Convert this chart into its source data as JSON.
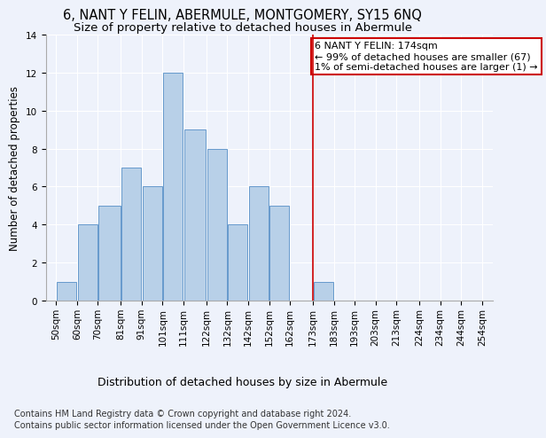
{
  "title": "6, NANT Y FELIN, ABERMULE, MONTGOMERY, SY15 6NQ",
  "subtitle": "Size of property relative to detached houses in Abermule",
  "xlabel": "Distribution of detached houses by size in Abermule",
  "ylabel": "Number of detached properties",
  "bar_left_edges": [
    50,
    60,
    70,
    81,
    91,
    101,
    111,
    122,
    132,
    142,
    152,
    162,
    173,
    183,
    193,
    203,
    213,
    224,
    234,
    244
  ],
  "bar_widths": [
    10,
    10,
    11,
    10,
    10,
    10,
    11,
    10,
    10,
    10,
    10,
    11,
    10,
    10,
    10,
    10,
    11,
    10,
    10,
    10
  ],
  "bar_heights": [
    1,
    4,
    5,
    7,
    6,
    12,
    9,
    8,
    4,
    6,
    5,
    0,
    1,
    0,
    0,
    0,
    0,
    0,
    0,
    0
  ],
  "bar_color": "#b8d0e8",
  "bar_edge_color": "#6699cc",
  "vline_x": 173,
  "vline_color": "#cc0000",
  "annotation_line1": "6 NANT Y FELIN: 174sqm",
  "annotation_line2": "← 99% of detached houses are smaller (67)",
  "annotation_line3": "1% of semi-detached houses are larger (1) →",
  "annotation_box_edge_color": "#cc0000",
  "ylim": [
    0,
    14
  ],
  "yticks": [
    0,
    2,
    4,
    6,
    8,
    10,
    12,
    14
  ],
  "xtick_labels": [
    "50sqm",
    "60sqm",
    "70sqm",
    "81sqm",
    "91sqm",
    "101sqm",
    "111sqm",
    "122sqm",
    "132sqm",
    "142sqm",
    "152sqm",
    "162sqm",
    "173sqm",
    "183sqm",
    "193sqm",
    "203sqm",
    "213sqm",
    "224sqm",
    "234sqm",
    "244sqm",
    "254sqm"
  ],
  "xtick_positions": [
    50,
    60,
    70,
    81,
    91,
    101,
    111,
    122,
    132,
    142,
    152,
    162,
    173,
    183,
    193,
    203,
    213,
    224,
    234,
    244,
    254
  ],
  "footer_line1": "Contains HM Land Registry data © Crown copyright and database right 2024.",
  "footer_line2": "Contains public sector information licensed under the Open Government Licence v3.0.",
  "background_color": "#eef2fb",
  "grid_color": "#ffffff",
  "title_fontsize": 10.5,
  "subtitle_fontsize": 9.5,
  "xlabel_fontsize": 9,
  "ylabel_fontsize": 8.5,
  "tick_fontsize": 7.5,
  "footer_fontsize": 7,
  "annotation_fontsize": 8
}
